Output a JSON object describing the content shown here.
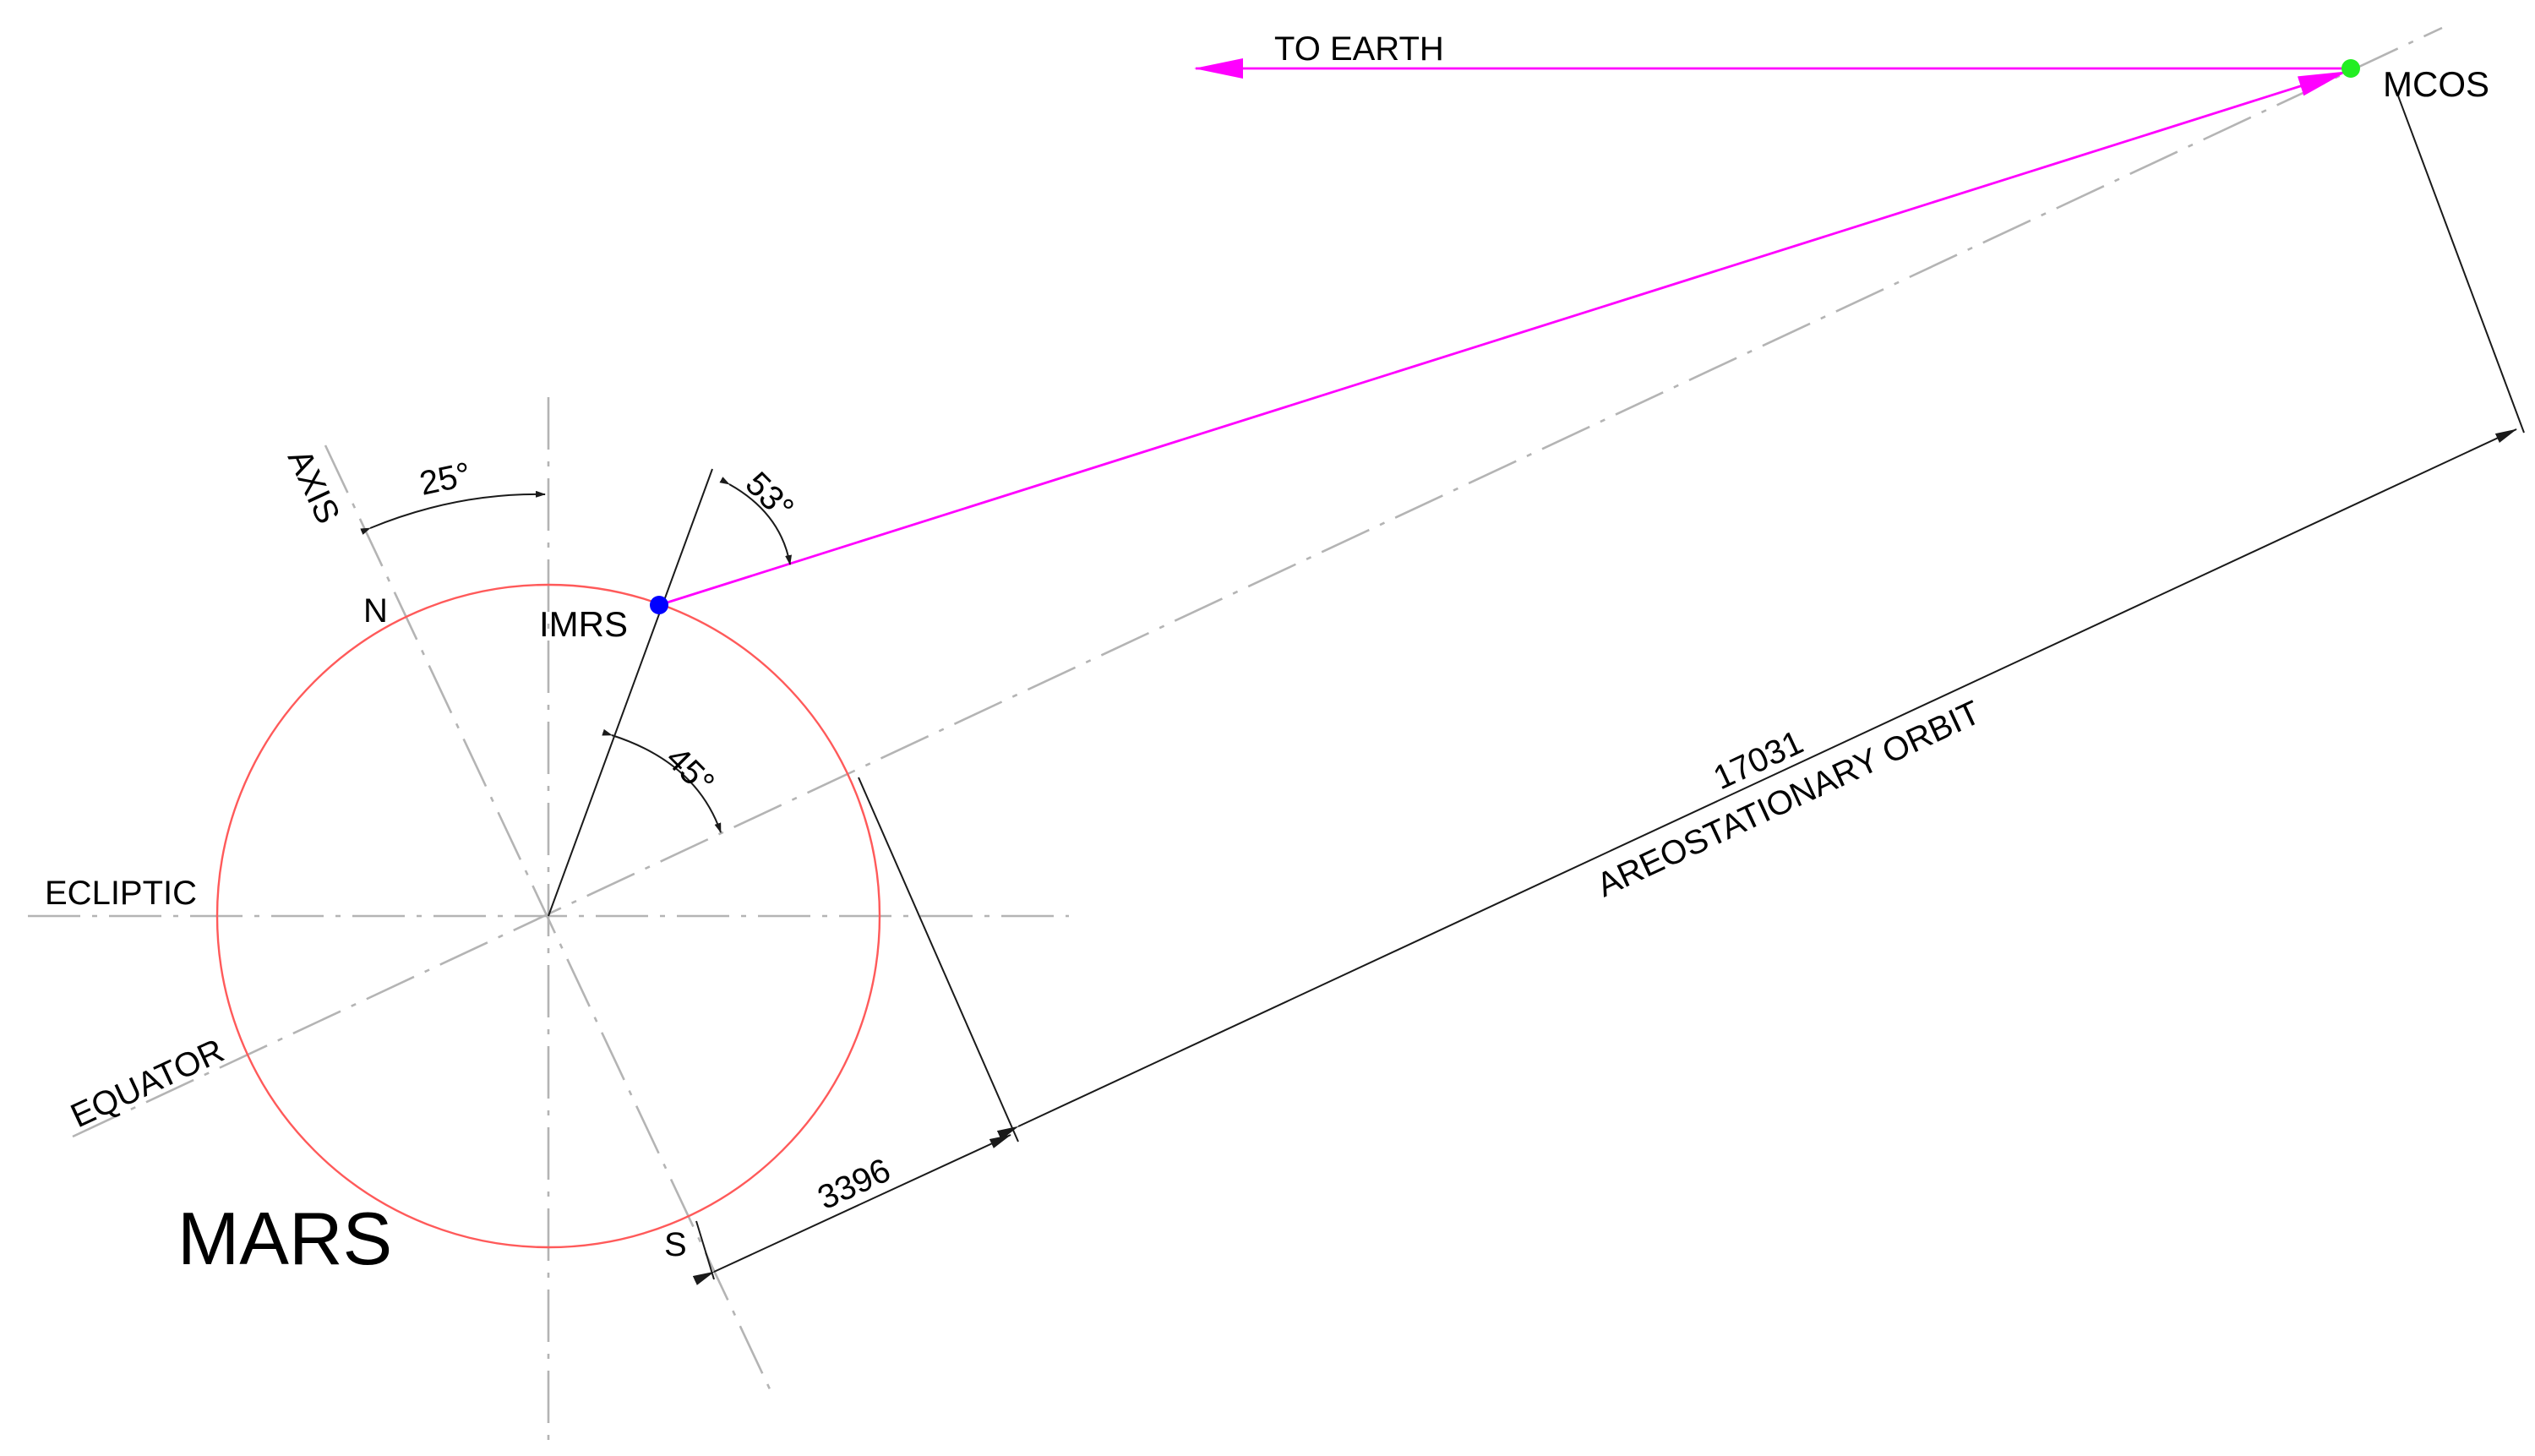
{
  "labels": {
    "axis": "AXIS",
    "north": "N",
    "south": "S",
    "ecliptic": "ECLIPTIC",
    "equator": "EQUATOR",
    "planet": "MARS",
    "imrs": "IMRS",
    "mcos": "MCOS",
    "to_earth": "TO EARTH",
    "orbit": "AREOSTATIONARY ORBIT"
  },
  "dimensions": {
    "axial_tilt": "25°",
    "imrs_latitude": "45°",
    "elevation": "53°",
    "mars_radius": "3396",
    "orbit_altitude": "17031"
  },
  "colors": {
    "planet_outline": "#ff5a5a",
    "link": "#ff00ff",
    "imrs_dot": "#0000ff",
    "mcos_dot": "#22ee22",
    "construction_line": "#b4b4b4",
    "dimension_line": "#1a1a1a"
  }
}
